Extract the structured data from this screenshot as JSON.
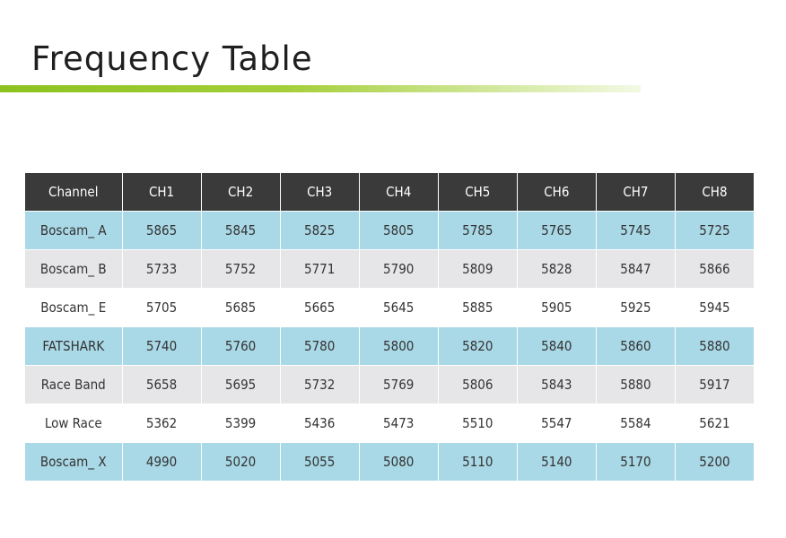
{
  "title": "Frequency Table",
  "table": {
    "headers": [
      "Channel",
      "CH1",
      "CH2",
      "CH3",
      "CH4",
      "CH5",
      "CH6",
      "CH7",
      "CH8"
    ],
    "rows": [
      {
        "name": "Boscam_ A",
        "values": [
          "5865",
          "5845",
          "5825",
          "5805",
          "5785",
          "5765",
          "5745",
          "5725"
        ]
      },
      {
        "name": "Boscam_ B",
        "values": [
          "5733",
          "5752",
          "5771",
          "5790",
          "5809",
          "5828",
          "5847",
          "5866"
        ]
      },
      {
        "name": "Boscam_ E",
        "values": [
          "5705",
          "5685",
          "5665",
          "5645",
          "5885",
          "5905",
          "5925",
          "5945"
        ]
      },
      {
        "name": "FATSHARK",
        "values": [
          "5740",
          "5760",
          "5780",
          "5800",
          "5820",
          "5840",
          "5860",
          "5880"
        ]
      },
      {
        "name": "Race Band",
        "values": [
          "5658",
          "5695",
          "5732",
          "5769",
          "5806",
          "5843",
          "5880",
          "5917"
        ]
      },
      {
        "name": "Low Race",
        "values": [
          "5362",
          "5399",
          "5436",
          "5473",
          "5510",
          "5547",
          "5584",
          "5621"
        ]
      },
      {
        "name": "Boscam_ X",
        "values": [
          "4990",
          "5020",
          "5055",
          "5080",
          "5110",
          "5140",
          "5170",
          "5200"
        ]
      }
    ]
  },
  "colors": {
    "header_bg": "#3a3a3a",
    "row_blue": "#a9d8e6",
    "row_grey": "#e6e6e8",
    "accent_green": "#8cc21f"
  }
}
